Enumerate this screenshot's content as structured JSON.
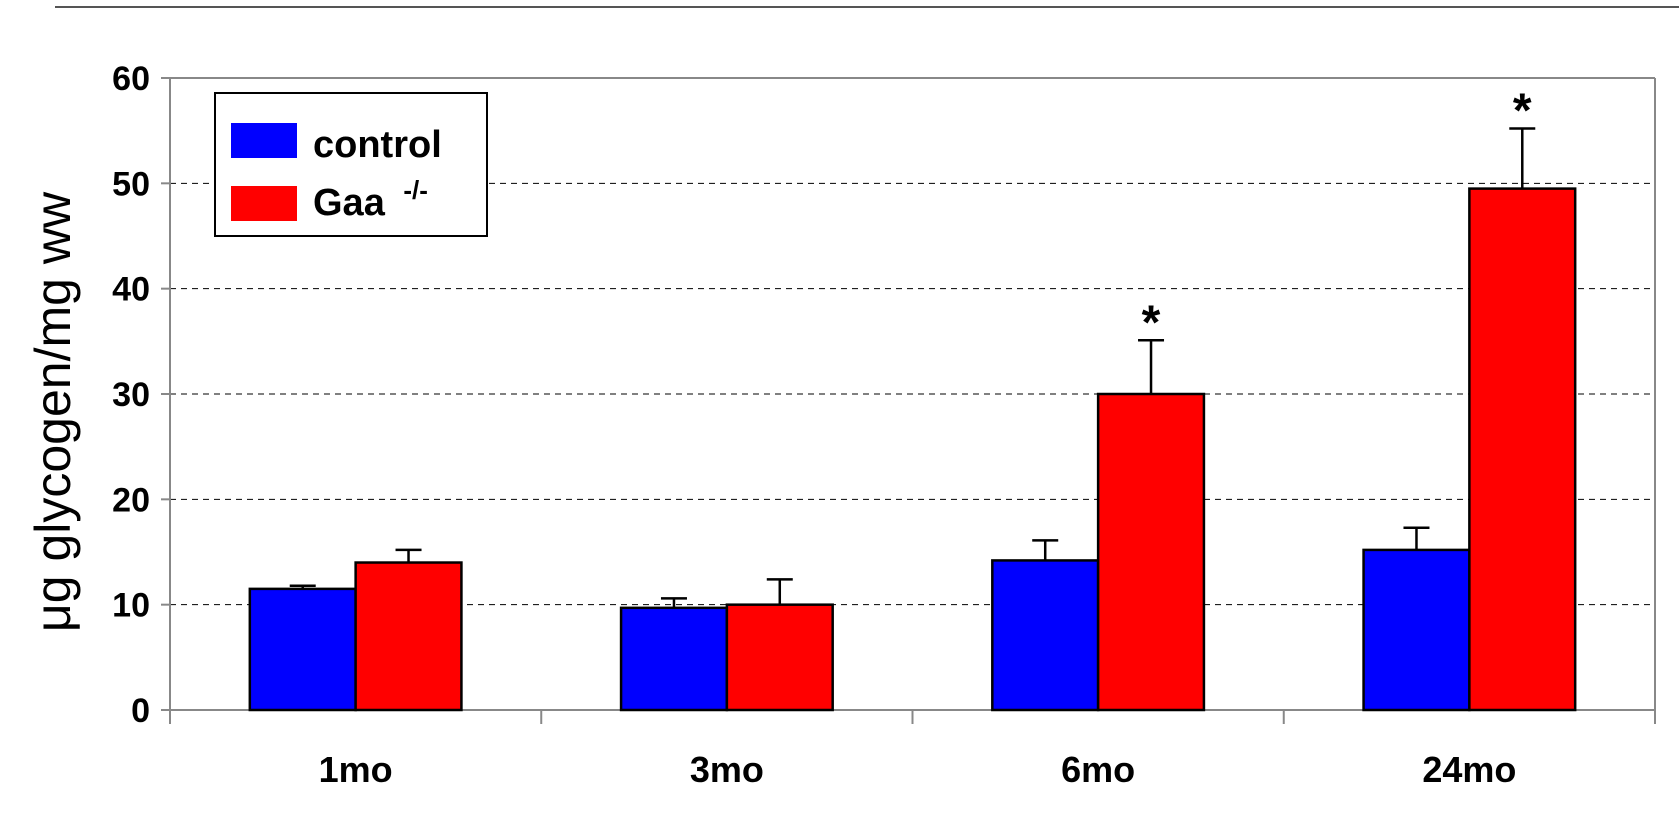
{
  "chart_data": {
    "type": "bar",
    "categories": [
      "1mo",
      "3mo",
      "6mo",
      "24mo"
    ],
    "series": [
      {
        "name": "control",
        "color": "#0000ff",
        "values": [
          11.5,
          9.7,
          14.2,
          15.2
        ],
        "errors": [
          0.3,
          0.9,
          1.9,
          2.1
        ]
      },
      {
        "name": "Gaa",
        "name_superscript": "-/-",
        "color": "#ff0000",
        "values": [
          14.0,
          10.0,
          30.0,
          49.5
        ],
        "errors": [
          1.2,
          2.4,
          5.1,
          5.7
        ]
      }
    ],
    "significance": [
      "",
      "",
      "*",
      "*"
    ],
    "ylabel": "μg glycogen/mg ww",
    "xlabel": "",
    "title": "",
    "ylim": [
      0,
      60
    ],
    "yticks": [
      0,
      10,
      20,
      30,
      40,
      50,
      60
    ],
    "grid": "horizontal dashed",
    "legend_position": "top-left"
  }
}
